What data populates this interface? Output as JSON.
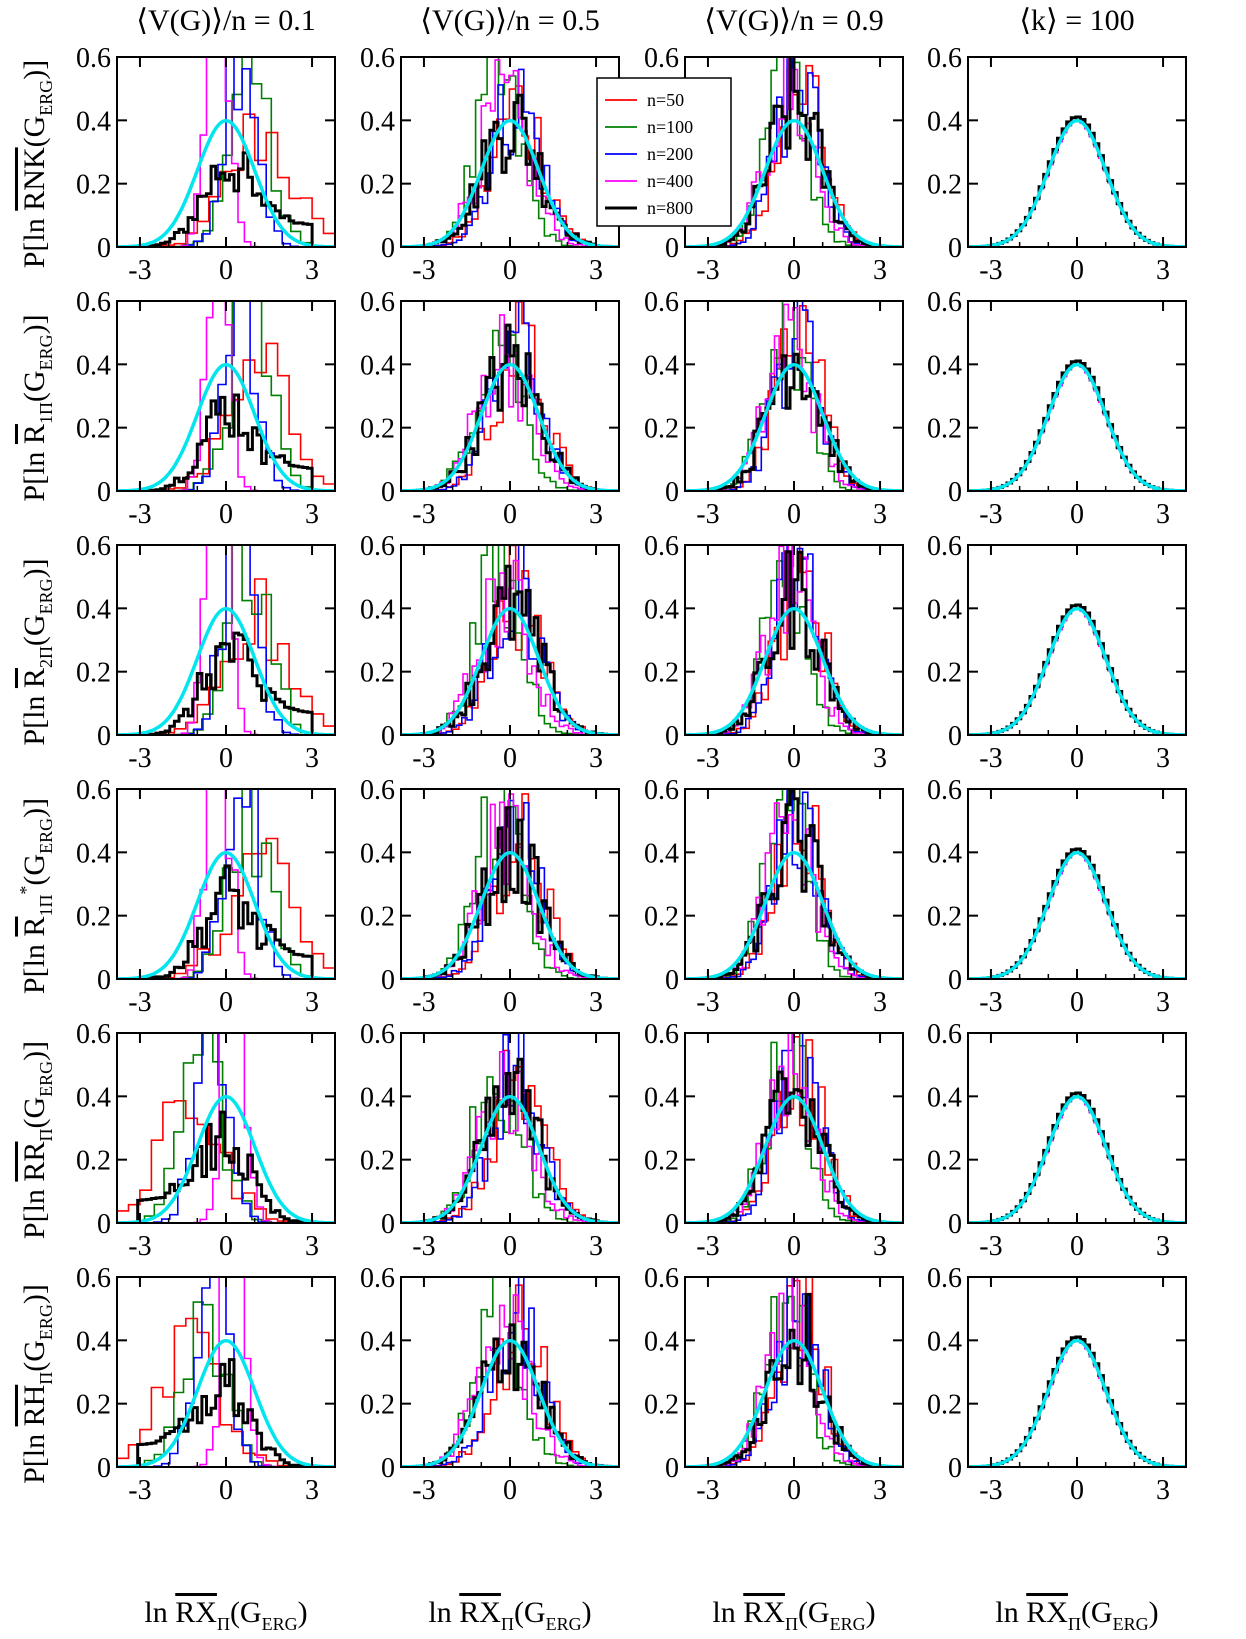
{
  "chart_data": {
    "type": "histogram-grid",
    "columns": [
      {
        "title_pre": "⟨V(G)⟩/n = ",
        "title_val": "0.1"
      },
      {
        "title_pre": "⟨V(G)⟩/n = ",
        "title_val": "0.5"
      },
      {
        "title_pre": "⟨V(G)⟩/n = ",
        "title_val": "0.9"
      },
      {
        "title_pre": "⟨k⟩ = ",
        "title_val": "100"
      }
    ],
    "rows": [
      {
        "pre": "P[ln ",
        "over": "RNK",
        "sub": "",
        "sup": "",
        "post": "(G",
        "post_sub": "ERG",
        "end": ")]"
      },
      {
        "pre": "P[ln ",
        "over": "R",
        "sub": "1Π",
        "sup": "",
        "post": "(G",
        "post_sub": "ERG",
        "end": ")]"
      },
      {
        "pre": "P[ln ",
        "over": "R",
        "sub": "2Π",
        "sup": "",
        "post": "(G",
        "post_sub": "ERG",
        "end": ")]"
      },
      {
        "pre": "P[ln ",
        "over": "R",
        "sub": "1Π",
        "sup": "*",
        "post": "(G",
        "post_sub": "ERG",
        "end": ")]"
      },
      {
        "pre": "P[ln ",
        "over": "RR",
        "sub": "Π",
        "sup": "",
        "post": "(G",
        "post_sub": "ERG",
        "end": ")]"
      },
      {
        "pre": "P[ln ",
        "over": "RH",
        "sub": "Π",
        "sup": "",
        "post": "(G",
        "post_sub": "ERG",
        "end": ")]"
      }
    ],
    "xlabel": {
      "pre": "ln ",
      "over": "RX",
      "sub": "Π",
      "post": "(G",
      "post_sub": "ERG",
      "end": ")"
    },
    "xlim": [
      -3.8,
      3.8
    ],
    "ylim": [
      0,
      0.6
    ],
    "xticks": [
      "-3",
      "0",
      "3"
    ],
    "xtick_values": [
      -3,
      0,
      3
    ],
    "yticks": [
      "0",
      "0.2",
      "0.4",
      "0.6"
    ],
    "ytick_values": [
      0,
      0.2,
      0.4,
      0.6
    ],
    "legend": {
      "placement": "top-right of column 2, row 1",
      "entries": [
        {
          "label": "n=50",
          "color": "#ff0000"
        },
        {
          "label": "n=100",
          "color": "#008000"
        },
        {
          "label": "n=200",
          "color": "#0000ff"
        },
        {
          "label": "n=400",
          "color": "#ff00ff"
        },
        {
          "label": "n=800",
          "color": "#000000"
        }
      ]
    },
    "reference_curve": {
      "description": "standard normal density",
      "color": "#00e5ee"
    },
    "series": [
      {
        "name": "n=50",
        "color": "#ff0000"
      },
      {
        "name": "n=100",
        "color": "#008000"
      },
      {
        "name": "n=200",
        "color": "#0000ff"
      },
      {
        "name": "n=400",
        "color": "#ff00ff"
      },
      {
        "name": "n=800",
        "color": "#000000"
      }
    ]
  }
}
